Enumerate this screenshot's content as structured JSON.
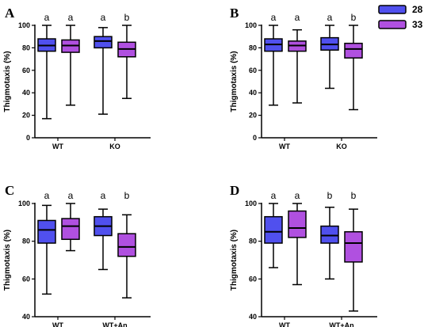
{
  "colors": {
    "series_28": "#5050ee",
    "series_33": "#b050e0",
    "line": "#000000"
  },
  "legend": {
    "position": "top-right",
    "entries": [
      "28",
      "33"
    ]
  },
  "chart_data": [
    {
      "panel": "A",
      "type": "box",
      "ylabel": "Thigmotaxis (%)",
      "ylim": [
        0,
        100
      ],
      "yticks": [
        0,
        20,
        40,
        60,
        80,
        100
      ],
      "groups": [
        "WT",
        "KO"
      ],
      "series": [
        {
          "name": "28",
          "boxes": [
            {
              "min": 17,
              "q1": 77,
              "median": 82,
              "q3": 88,
              "max": 100
            },
            {
              "min": 21,
              "q1": 80,
              "median": 86,
              "q3": 90,
              "max": 98
            }
          ]
        },
        {
          "name": "33",
          "boxes": [
            {
              "min": 29,
              "q1": 76,
              "median": 82,
              "q3": 87,
              "max": 100
            },
            {
              "min": 35,
              "q1": 72,
              "median": 79,
              "q3": 85,
              "max": 100
            }
          ]
        }
      ],
      "significance": [
        [
          "a",
          "a"
        ],
        [
          "a",
          "b"
        ]
      ]
    },
    {
      "panel": "B",
      "type": "box",
      "ylabel": "Thigmotaxis (%)",
      "ylim": [
        0,
        100
      ],
      "yticks": [
        0,
        20,
        40,
        60,
        80,
        100
      ],
      "groups": [
        "WT",
        "KO"
      ],
      "series": [
        {
          "name": "28",
          "boxes": [
            {
              "min": 29,
              "q1": 77,
              "median": 83,
              "q3": 88,
              "max": 100
            },
            {
              "min": 44,
              "q1": 78,
              "median": 83,
              "q3": 89,
              "max": 100
            }
          ]
        },
        {
          "name": "33",
          "boxes": [
            {
              "min": 31,
              "q1": 77,
              "median": 82,
              "q3": 86,
              "max": 96
            },
            {
              "min": 25,
              "q1": 71,
              "median": 79,
              "q3": 84,
              "max": 100
            }
          ]
        }
      ],
      "significance": [
        [
          "a",
          "a"
        ],
        [
          "a",
          "b"
        ]
      ]
    },
    {
      "panel": "C",
      "type": "box",
      "ylabel": "Thigmotaxis (%)",
      "ylim": [
        40,
        100
      ],
      "yticks": [
        40,
        60,
        80,
        100
      ],
      "groups": [
        "WT",
        "WT+An"
      ],
      "series": [
        {
          "name": "28",
          "boxes": [
            {
              "min": 52,
              "q1": 79,
              "median": 86,
              "q3": 91,
              "max": 99
            },
            {
              "min": 65,
              "q1": 83,
              "median": 88,
              "q3": 93,
              "max": 97
            }
          ]
        },
        {
          "name": "33",
          "boxes": [
            {
              "min": 75,
              "q1": 81,
              "median": 88,
              "q3": 92,
              "max": 100
            },
            {
              "min": 50,
              "q1": 72,
              "median": 77,
              "q3": 84,
              "max": 94
            }
          ]
        }
      ],
      "significance": [
        [
          "a",
          "a"
        ],
        [
          "a",
          "b"
        ]
      ]
    },
    {
      "panel": "D",
      "type": "box",
      "ylabel": "Thigmotaxis (%)",
      "ylim": [
        40,
        100
      ],
      "yticks": [
        40,
        60,
        80,
        100
      ],
      "groups": [
        "WT",
        "WT+An"
      ],
      "series": [
        {
          "name": "28",
          "boxes": [
            {
              "min": 66,
              "q1": 79,
              "median": 85,
              "q3": 93,
              "max": 100
            },
            {
              "min": 60,
              "q1": 79,
              "median": 83,
              "q3": 88,
              "max": 98
            }
          ]
        },
        {
          "name": "33",
          "boxes": [
            {
              "min": 57,
              "q1": 82,
              "median": 87,
              "q3": 96,
              "max": 100
            },
            {
              "min": 43,
              "q1": 69,
              "median": 79,
              "q3": 85,
              "max": 97
            }
          ]
        }
      ],
      "significance": [
        [
          "a",
          "a"
        ],
        [
          "b",
          "b"
        ]
      ]
    }
  ]
}
